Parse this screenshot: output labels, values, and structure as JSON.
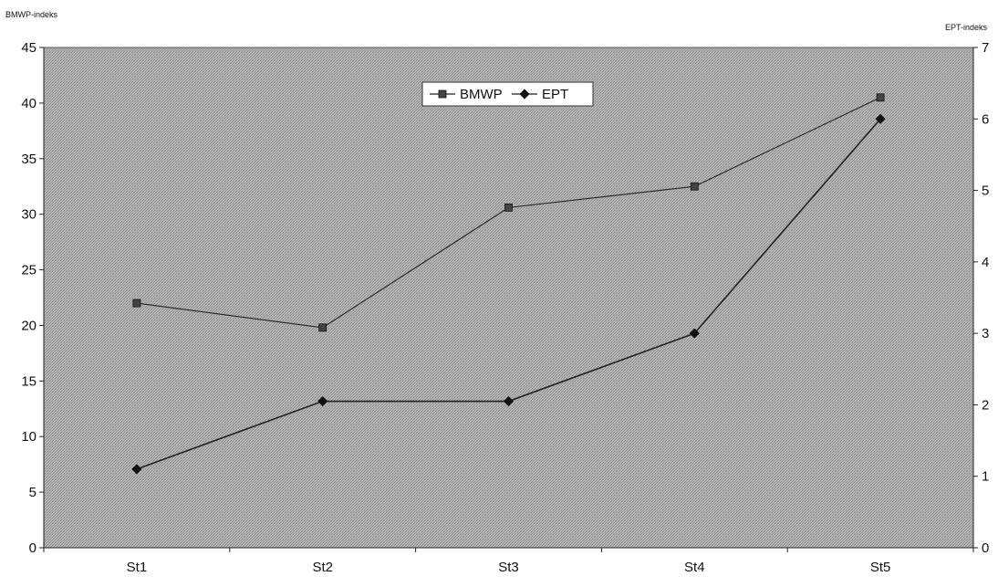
{
  "chart_data": {
    "type": "line",
    "categories": [
      "St1",
      "St2",
      "St3",
      "St4",
      "St5"
    ],
    "ylabel_left": "BMWP-indeks",
    "ylabel_right": "EPT-indeks",
    "ylim_left": [
      0,
      45
    ],
    "ylim_right": [
      0,
      7
    ],
    "yticks_left": [
      0,
      5,
      10,
      15,
      20,
      25,
      30,
      35,
      40,
      45
    ],
    "yticks_right": [
      0,
      1,
      2,
      3,
      4,
      5,
      6,
      7
    ],
    "grid": false,
    "legend_position": "top-center",
    "series": [
      {
        "name": "BMWP",
        "axis": "left",
        "marker": "square",
        "values": [
          22,
          19.8,
          30.6,
          32.5,
          40.5
        ]
      },
      {
        "name": "EPT",
        "axis": "right",
        "marker": "diamond",
        "values": [
          1.1,
          2.05,
          2.05,
          3.0,
          6.0
        ]
      }
    ],
    "colors": {
      "plot_bg": "#a9a9a9",
      "line": "#222222"
    }
  }
}
